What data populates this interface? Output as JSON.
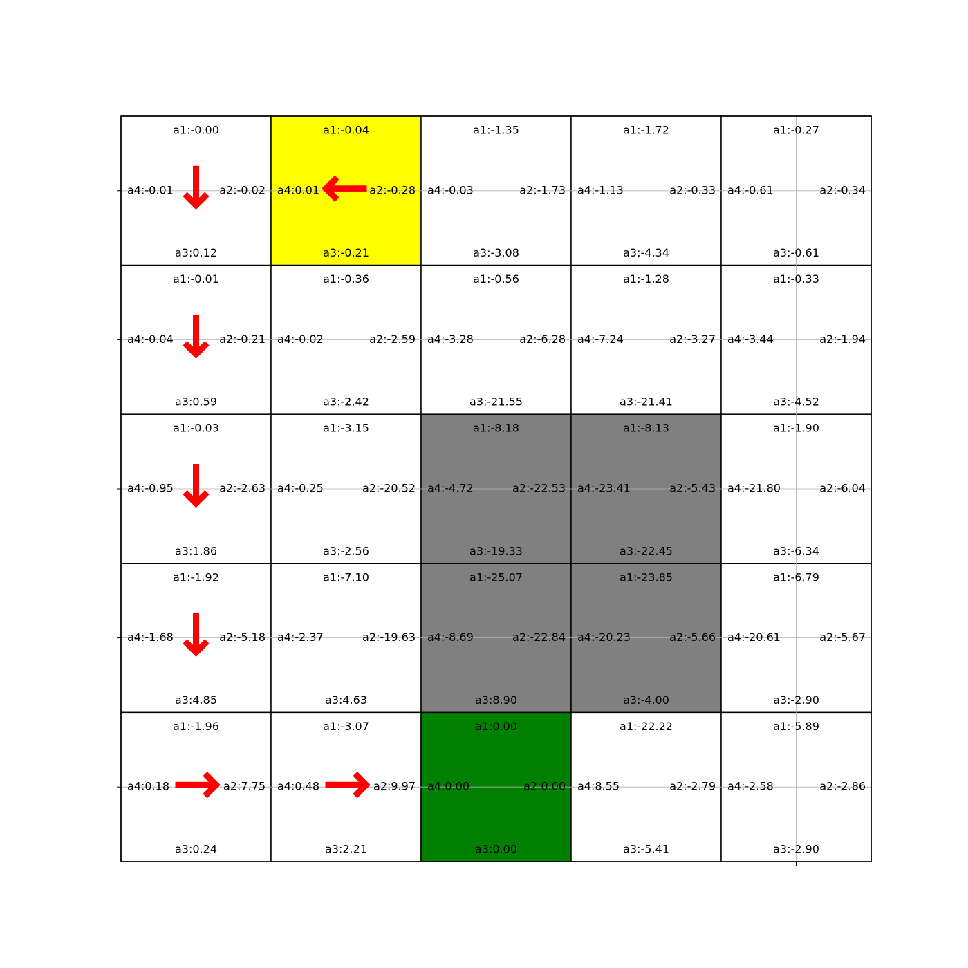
{
  "chart_data": {
    "type": "heatmap",
    "title": "",
    "xlabel": "",
    "ylabel": "",
    "grid": true,
    "rows": 5,
    "cols": 5,
    "colors": {
      "start": "#ffff00",
      "goal": "#008000",
      "obstacle": "#808080",
      "empty": "#ffffff",
      "arrow": "#ff0000"
    },
    "cells": [
      {
        "row": 0,
        "col": 0,
        "type": "empty",
        "a1": "a1:-0.00",
        "a2": "a2:-0.02",
        "a3": "a3:0.12",
        "a4": "a4:-0.01",
        "policy": "down"
      },
      {
        "row": 0,
        "col": 1,
        "type": "start",
        "a1": "a1:-0.04",
        "a2": "a2:-0.28",
        "a3": "a3:-0.21",
        "a4": "a4:0.01",
        "policy": "left"
      },
      {
        "row": 0,
        "col": 2,
        "type": "empty",
        "a1": "a1:-1.35",
        "a2": "a2:-1.73",
        "a3": "a3:-3.08",
        "a4": "a4:-0.03",
        "policy": null
      },
      {
        "row": 0,
        "col": 3,
        "type": "empty",
        "a1": "a1:-1.72",
        "a2": "a2:-0.33",
        "a3": "a3:-4.34",
        "a4": "a4:-1.13",
        "policy": null
      },
      {
        "row": 0,
        "col": 4,
        "type": "empty",
        "a1": "a1:-0.27",
        "a2": "a2:-0.34",
        "a3": "a3:-0.61",
        "a4": "a4:-0.61",
        "policy": null
      },
      {
        "row": 1,
        "col": 0,
        "type": "empty",
        "a1": "a1:-0.01",
        "a2": "a2:-0.21",
        "a3": "a3:0.59",
        "a4": "a4:-0.04",
        "policy": "down"
      },
      {
        "row": 1,
        "col": 1,
        "type": "empty",
        "a1": "a1:-0.36",
        "a2": "a2:-2.59",
        "a3": "a3:-2.42",
        "a4": "a4:-0.02",
        "policy": null
      },
      {
        "row": 1,
        "col": 2,
        "type": "empty",
        "a1": "a1:-0.56",
        "a2": "a2:-6.28",
        "a3": "a3:-21.55",
        "a4": "a4:-3.28",
        "policy": null
      },
      {
        "row": 1,
        "col": 3,
        "type": "empty",
        "a1": "a1:-1.28",
        "a2": "a2:-3.27",
        "a3": "a3:-21.41",
        "a4": "a4:-7.24",
        "policy": null
      },
      {
        "row": 1,
        "col": 4,
        "type": "empty",
        "a1": "a1:-0.33",
        "a2": "a2:-1.94",
        "a3": "a3:-4.52",
        "a4": "a4:-3.44",
        "policy": null
      },
      {
        "row": 2,
        "col": 0,
        "type": "empty",
        "a1": "a1:-0.03",
        "a2": "a2:-2.63",
        "a3": "a3:1.86",
        "a4": "a4:-0.95",
        "policy": "down"
      },
      {
        "row": 2,
        "col": 1,
        "type": "empty",
        "a1": "a1:-3.15",
        "a2": "a2:-20.52",
        "a3": "a3:-2.56",
        "a4": "a4:-0.25",
        "policy": null
      },
      {
        "row": 2,
        "col": 2,
        "type": "obstacle",
        "a1": "a1:-8.18",
        "a2": "a2:-22.53",
        "a3": "a3:-19.33",
        "a4": "a4:-4.72",
        "policy": null
      },
      {
        "row": 2,
        "col": 3,
        "type": "obstacle",
        "a1": "a1:-8.13",
        "a2": "a2:-5.43",
        "a3": "a3:-22.45",
        "a4": "a4:-23.41",
        "policy": null
      },
      {
        "row": 2,
        "col": 4,
        "type": "empty",
        "a1": "a1:-1.90",
        "a2": "a2:-6.04",
        "a3": "a3:-6.34",
        "a4": "a4:-21.80",
        "policy": null
      },
      {
        "row": 3,
        "col": 0,
        "type": "empty",
        "a1": "a1:-1.92",
        "a2": "a2:-5.18",
        "a3": "a3:4.85",
        "a4": "a4:-1.68",
        "policy": "down"
      },
      {
        "row": 3,
        "col": 1,
        "type": "empty",
        "a1": "a1:-7.10",
        "a2": "a2:-19.63",
        "a3": "a3:4.63",
        "a4": "a4:-2.37",
        "policy": null
      },
      {
        "row": 3,
        "col": 2,
        "type": "obstacle",
        "a1": "a1:-25.07",
        "a2": "a2:-22.84",
        "a3": "a3:8.90",
        "a4": "a4:-8.69",
        "policy": null
      },
      {
        "row": 3,
        "col": 3,
        "type": "obstacle",
        "a1": "a1:-23.85",
        "a2": "a2:-5.66",
        "a3": "a3:-4.00",
        "a4": "a4:-20.23",
        "policy": null
      },
      {
        "row": 3,
        "col": 4,
        "type": "empty",
        "a1": "a1:-6.79",
        "a2": "a2:-5.67",
        "a3": "a3:-2.90",
        "a4": "a4:-20.61",
        "policy": null
      },
      {
        "row": 4,
        "col": 0,
        "type": "empty",
        "a1": "a1:-1.96",
        "a2": "a2:7.75",
        "a3": "a3:0.24",
        "a4": "a4:0.18",
        "policy": "right"
      },
      {
        "row": 4,
        "col": 1,
        "type": "empty",
        "a1": "a1:-3.07",
        "a2": "a2:9.97",
        "a3": "a3:2.21",
        "a4": "a4:0.48",
        "policy": "right"
      },
      {
        "row": 4,
        "col": 2,
        "type": "goal",
        "a1": "a1:0.00",
        "a2": "a2:0.00",
        "a3": "a3:0.00",
        "a4": "a4:0.00",
        "policy": null
      },
      {
        "row": 4,
        "col": 3,
        "type": "empty",
        "a1": "a1:-22.22",
        "a2": "a2:-2.79",
        "a3": "a3:-5.41",
        "a4": "a4:8.55",
        "policy": null
      },
      {
        "row": 4,
        "col": 4,
        "type": "empty",
        "a1": "a1:-5.89",
        "a2": "a2:-2.86",
        "a3": "a3:-2.90",
        "a4": "a4:-2.58",
        "policy": null
      }
    ]
  }
}
